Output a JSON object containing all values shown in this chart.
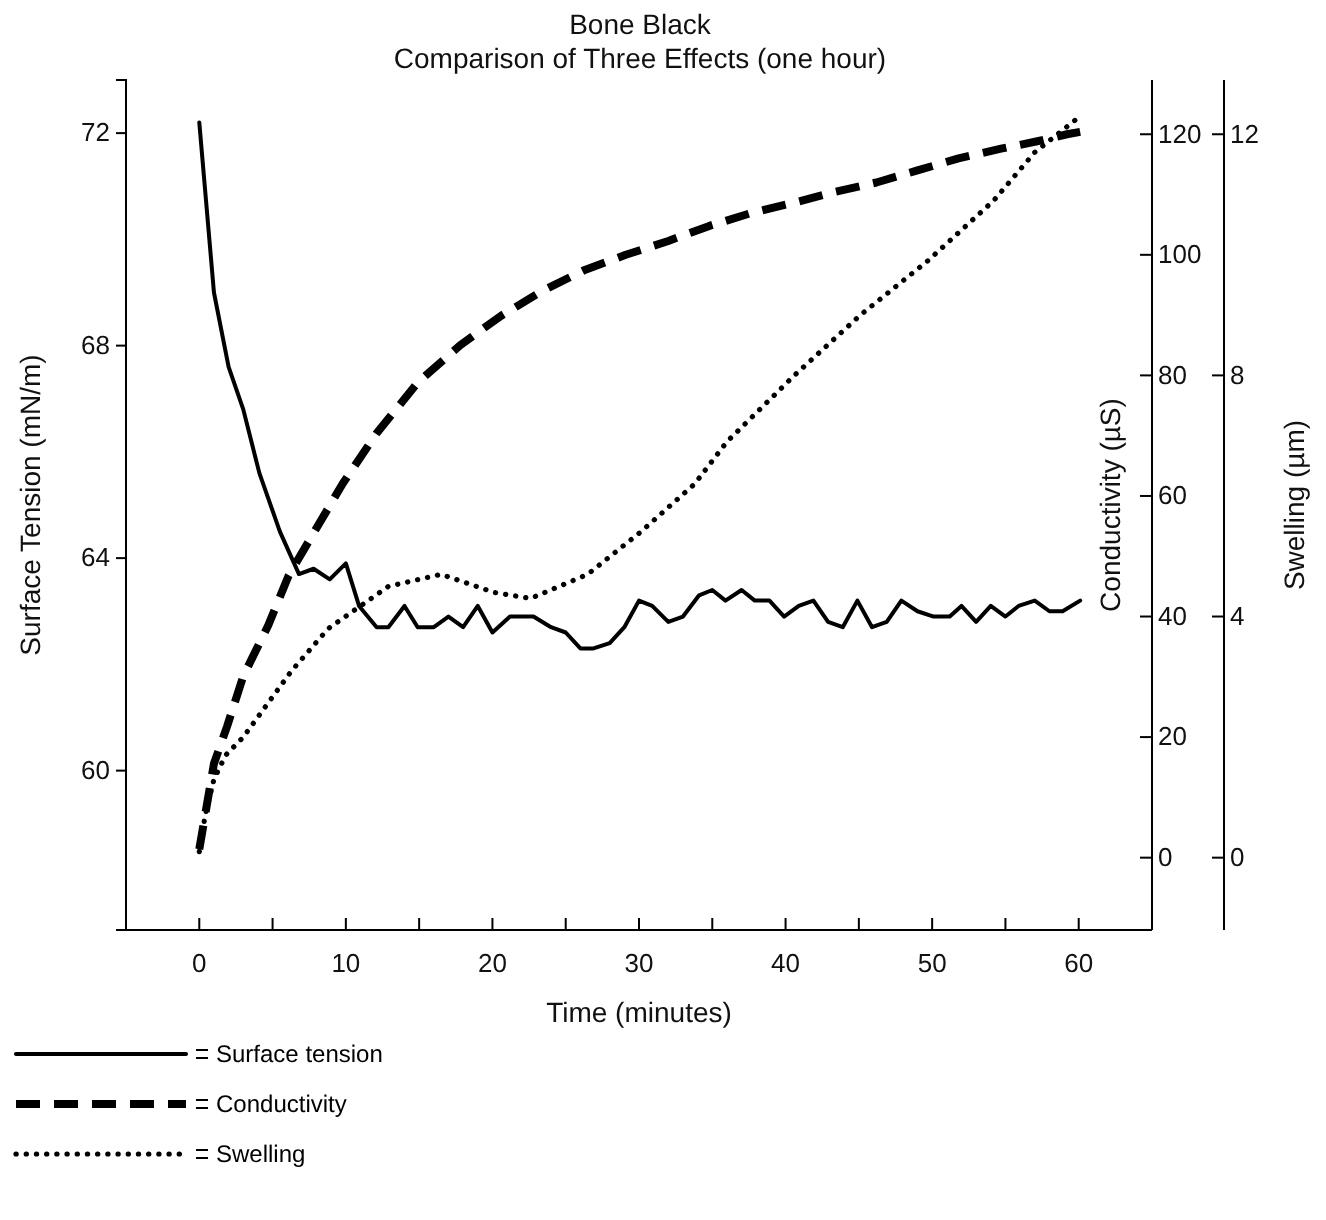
{
  "chart_data": {
    "type": "line",
    "title": "Bone Black",
    "subtitle": "Comparison of Three Effects (one hour)",
    "xlabel": "Time (minutes)",
    "ylabel": "Surface Tension (mN/m)",
    "y2label": "Conductivity (µS)",
    "y3label": "Swelling (µm)",
    "xlim": [
      -5,
      65
    ],
    "xticks": [
      {
        "value": -5,
        "label": null
      },
      0,
      {
        "value": 5,
        "label": null
      },
      10,
      {
        "value": 15,
        "label": null
      },
      20,
      {
        "value": 25,
        "label": null
      },
      30,
      {
        "value": 35,
        "label": null
      },
      40,
      {
        "value": 45,
        "label": null
      },
      50,
      {
        "value": 55,
        "label": null
      },
      60,
      {
        "value": 65,
        "label": null
      }
    ],
    "ylim": [
      57,
      73
    ],
    "yticks": [
      60,
      64,
      68,
      72
    ],
    "y2lim": [
      -12,
      129
    ],
    "y2ticks": [
      0,
      20,
      40,
      60,
      80,
      100,
      120
    ],
    "y3lim": [
      -1.2,
      12.9
    ],
    "y3ticks": [
      0,
      4,
      8,
      12
    ],
    "legend": "bottom left",
    "grid": false,
    "series": [
      {
        "name": "Surface tension",
        "color": "#000000",
        "line_style": "solid",
        "x": [
          0,
          1.0,
          2.0,
          3.0,
          4.1,
          5.5,
          6.8,
          7.8,
          8.9,
          10.0,
          10.9,
          12.1,
          12.9,
          14.0,
          14.9,
          16.0,
          17.0,
          18.0,
          19.0,
          20.0,
          21.2,
          22.8,
          24.0,
          25.0,
          26.0,
          26.9,
          28.0,
          29.0,
          30.0,
          30.9,
          32.0,
          33.0,
          34.1,
          35.0,
          35.9,
          37.0,
          37.9,
          38.9,
          39.9,
          40.9,
          41.9,
          42.9,
          43.9,
          44.9,
          45.9,
          46.9,
          47.9,
          49.0,
          50.1,
          51.2,
          52.0,
          53.0,
          54.0,
          55.0,
          55.9,
          57.0,
          58.0,
          58.9,
          60.1
        ],
        "values": [
          72.2,
          69.0,
          67.6,
          66.8,
          65.6,
          64.5,
          63.7,
          63.8,
          63.6,
          63.9,
          63.1,
          62.7,
          62.7,
          63.1,
          62.7,
          62.7,
          62.9,
          62.7,
          63.1,
          62.6,
          62.9,
          62.9,
          62.7,
          62.6,
          62.3,
          62.3,
          62.4,
          62.7,
          63.2,
          63.1,
          62.8,
          62.9,
          63.3,
          63.4,
          63.2,
          63.4,
          63.2,
          63.2,
          62.9,
          63.1,
          63.2,
          62.8,
          62.7,
          63.2,
          62.7,
          62.8,
          63.2,
          63.0,
          62.9,
          62.9,
          63.1,
          62.8,
          63.1,
          62.9,
          63.1,
          63.2,
          63.0,
          63.0,
          63.2
        ]
      },
      {
        "name": "Conductivity",
        "color": "#000000",
        "line_style": "dashed",
        "axis": "y2",
        "x": [
          0,
          1.0,
          1.9,
          3.0,
          4.7,
          6.1,
          8.1,
          9.8,
          12.1,
          14.9,
          17.8,
          20.6,
          23.4,
          26.3,
          29.1,
          32.0,
          34.8,
          37.6,
          40.5,
          43.3,
          46.2,
          49.0,
          51.8,
          54.7,
          57.5,
          59.2,
          60.1
        ],
        "values": [
          1.4,
          15.6,
          21.8,
          30.1,
          38.5,
          46.8,
          55.1,
          62.1,
          70.4,
          78.8,
          85.0,
          89.9,
          94.0,
          97.5,
          100.0,
          102.3,
          104.8,
          106.9,
          108.6,
          110.4,
          112.0,
          114.0,
          116.0,
          117.6,
          119.0,
          120.0,
          120.4
        ]
      },
      {
        "name": "Swelling",
        "color": "#000000",
        "line_style": "dotted",
        "axis": "y3",
        "x": [
          0,
          0.4,
          1.0,
          1.8,
          3.0,
          4.2,
          6.3,
          8.8,
          12.9,
          16.5,
          20.1,
          22.6,
          26.5,
          30.1,
          33.8,
          36.0,
          40.6,
          45.1,
          49.7,
          54.2,
          57.0,
          60.1
        ],
        "values": [
          0.1,
          0.7,
          1.3,
          1.7,
          2.0,
          2.4,
          3.1,
          3.8,
          4.5,
          4.7,
          4.4,
          4.3,
          4.7,
          5.4,
          6.2,
          6.9,
          8.0,
          9.0,
          9.9,
          10.9,
          11.7,
          12.3
        ]
      }
    ]
  }
}
